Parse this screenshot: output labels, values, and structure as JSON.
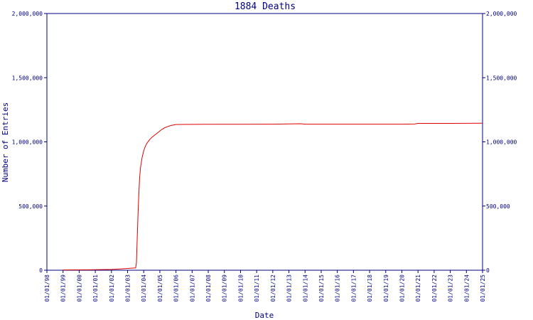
{
  "chart_data": {
    "type": "line",
    "title": "1884 Deaths",
    "xlabel": "Date",
    "ylabel": "Number of Entries",
    "ylim": [
      0,
      2000000
    ],
    "y_ticks": [
      0,
      500000,
      1000000,
      1500000,
      2000000
    ],
    "y_tick_labels": [
      "0",
      "500,000",
      "1,000,000",
      "1,500,000",
      "2,000,000"
    ],
    "y_tick_labels_right": [
      "0",
      "500,000",
      "1,000,000",
      "1,500,000",
      "2,000,000"
    ],
    "x_tick_labels": [
      "01/01/98",
      "01/01/99",
      "01/01/00",
      "01/01/01",
      "01/01/02",
      "01/01/03",
      "01/01/04",
      "01/01/05",
      "01/01/06",
      "01/01/07",
      "01/01/08",
      "01/01/09",
      "01/01/10",
      "01/01/11",
      "01/01/12",
      "01/01/13",
      "01/01/14",
      "01/01/15",
      "01/01/16",
      "01/01/17",
      "01/01/18",
      "01/01/19",
      "01/01/20",
      "01/01/21",
      "01/01/22",
      "01/01/23",
      "01/01/24",
      "01/01/25"
    ],
    "x_tick_years": [
      1998,
      1999,
      2000,
      2001,
      2002,
      2003,
      2004,
      2005,
      2006,
      2007,
      2008,
      2009,
      2010,
      2011,
      2012,
      2013,
      2014,
      2015,
      2016,
      2017,
      2018,
      2019,
      2020,
      2021,
      2022,
      2023,
      2024,
      2025
    ],
    "xlim": [
      1998,
      2025
    ],
    "grid": false,
    "line_color": "#e00000",
    "axis_color": "#000080",
    "series": [
      {
        "x": [
          1999.0,
          2000.0,
          2001.0,
          2002.0,
          2002.5,
          2003.0,
          2003.5,
          2003.55,
          2003.6,
          2003.65,
          2003.7,
          2003.75,
          2003.8,
          2003.9,
          2004.0,
          2004.1,
          2004.2,
          2004.35,
          2004.5,
          2004.7,
          2004.9,
          2005.1,
          2005.3,
          2005.5,
          2005.7,
          2006.0,
          2008.0,
          2010.0,
          2012.0,
          2013.7,
          2014.0,
          2016.0,
          2018.0,
          2020.0,
          2020.8,
          2021.0,
          2023.0,
          2025.0
        ],
        "y": [
          2000,
          3000,
          4000,
          6000,
          10000,
          14000,
          18000,
          60000,
          250000,
          450000,
          600000,
          720000,
          800000,
          880000,
          930000,
          965000,
          990000,
          1015000,
          1035000,
          1055000,
          1075000,
          1095000,
          1110000,
          1120000,
          1128000,
          1135000,
          1137000,
          1137000,
          1138000,
          1141000,
          1138000,
          1138000,
          1138000,
          1138000,
          1139000,
          1144000,
          1144000,
          1145000
        ]
      }
    ]
  }
}
